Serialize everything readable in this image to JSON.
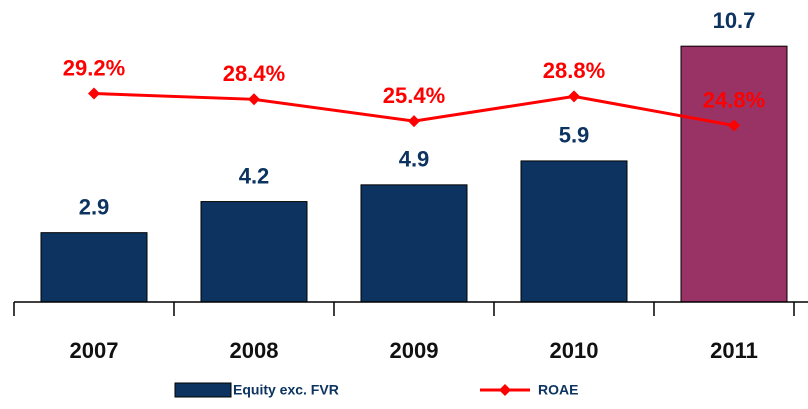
{
  "chart_data": {
    "type": "bar_line",
    "categories": [
      "2007",
      "2008",
      "2009",
      "2010",
      "2011"
    ],
    "series": [
      {
        "name": "Equity exc. FVR",
        "type": "bar",
        "color": "#0d3461",
        "colors": [
          "#0d3461",
          "#0d3461",
          "#0d3461",
          "#0d3461",
          "#993366"
        ],
        "values": [
          2.9,
          4.2,
          4.9,
          5.9,
          10.7
        ]
      },
      {
        "name": "ROAE",
        "type": "line",
        "axis": "y2",
        "color": "#ff0000",
        "values": [
          29.2,
          28.4,
          25.4,
          28.8,
          24.8
        ],
        "value_labels": [
          "29.2%",
          "28.4%",
          "25.4%",
          "28.8%",
          "24.8%"
        ]
      }
    ],
    "ylim": [
      0,
      11
    ],
    "y2lim": [
      0,
      36
    ]
  }
}
